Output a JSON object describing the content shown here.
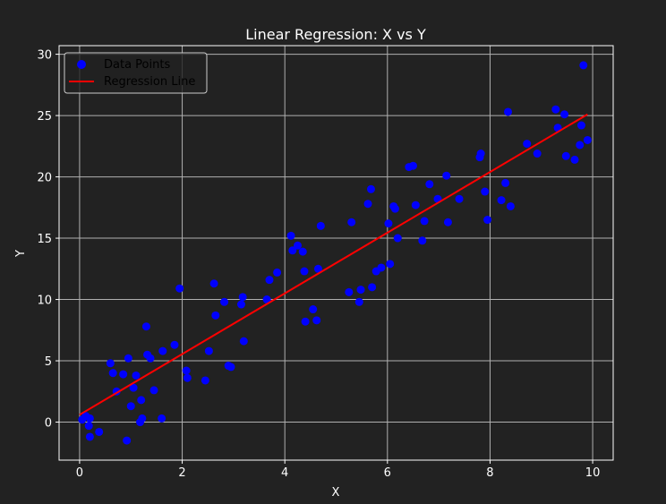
{
  "chart_data": {
    "type": "scatter",
    "title": "Linear Regression: X vs Y",
    "xlabel": "X",
    "ylabel": "Y",
    "xlim": [
      -0.4,
      10.4
    ],
    "ylim": [
      -3.1,
      30.7
    ],
    "xticks": [
      0,
      2,
      4,
      6,
      8,
      10
    ],
    "yticks": [
      0,
      5,
      10,
      15,
      20,
      25,
      30
    ],
    "grid": true,
    "legend_position": "top-left",
    "colors": {
      "background": "#222222",
      "axes_frame": "#ffffff",
      "grid": "#b0b0b0",
      "points": "#0000ff",
      "line": "#ff0000",
      "legend_bg": "#222222",
      "text": "#ffffff"
    },
    "series": [
      {
        "name": "Data Points",
        "kind": "scatter",
        "x": [
          0.05,
          0.12,
          0.18,
          0.2,
          0.2,
          0.38,
          0.6,
          0.65,
          0.72,
          0.85,
          0.92,
          0.95,
          1.0,
          1.05,
          1.1,
          1.18,
          1.2,
          1.22,
          1.3,
          1.32,
          1.38,
          1.45,
          1.6,
          1.62,
          1.85,
          1.95,
          2.08,
          2.1,
          2.45,
          2.52,
          2.62,
          2.65,
          2.82,
          2.9,
          2.95,
          3.15,
          3.18,
          3.2,
          3.65,
          3.7,
          3.85,
          4.12,
          4.15,
          4.25,
          4.35,
          4.38,
          4.4,
          4.55,
          4.62,
          4.65,
          4.7,
          5.25,
          5.3,
          5.45,
          5.48,
          5.62,
          5.68,
          5.7,
          5.78,
          5.88,
          6.02,
          6.05,
          6.12,
          6.15,
          6.2,
          6.42,
          6.5,
          6.55,
          6.68,
          6.72,
          6.82,
          6.98,
          7.15,
          7.18,
          7.4,
          7.8,
          7.82,
          7.9,
          7.95,
          8.22,
          8.3,
          8.35,
          8.4,
          8.72,
          8.92,
          9.28,
          9.32,
          9.45,
          9.48,
          9.65,
          9.75,
          9.78,
          9.82,
          9.9
        ],
        "y": [
          0.2,
          0.5,
          -0.3,
          -1.2,
          0.3,
          -0.8,
          4.8,
          4.0,
          2.5,
          3.9,
          -1.5,
          5.2,
          1.3,
          2.8,
          3.8,
          0.0,
          1.8,
          0.3,
          7.8,
          5.5,
          5.2,
          2.6,
          0.3,
          5.8,
          6.3,
          10.9,
          4.2,
          3.6,
          3.4,
          5.8,
          11.3,
          8.7,
          9.8,
          4.6,
          4.5,
          9.6,
          10.2,
          6.6,
          10.0,
          11.6,
          12.2,
          15.2,
          14.0,
          14.4,
          13.9,
          12.3,
          8.2,
          9.2,
          8.3,
          12.5,
          16.0,
          10.6,
          16.3,
          9.8,
          10.8,
          17.8,
          19.0,
          11.0,
          12.3,
          12.6,
          16.2,
          12.9,
          17.6,
          17.4,
          15.0,
          20.8,
          20.9,
          17.7,
          14.8,
          16.4,
          19.4,
          18.2,
          20.1,
          16.3,
          18.2,
          21.6,
          21.9,
          18.8,
          16.5,
          18.1,
          19.5,
          25.3,
          17.6,
          22.7,
          21.9,
          25.5,
          24.0,
          25.1,
          21.7,
          21.4,
          22.6,
          24.2,
          29.1,
          23.0
        ]
      },
      {
        "name": "Regression Line",
        "kind": "line",
        "x": [
          0.0,
          9.9
        ],
        "y": [
          0.6,
          25.1
        ]
      }
    ]
  }
}
